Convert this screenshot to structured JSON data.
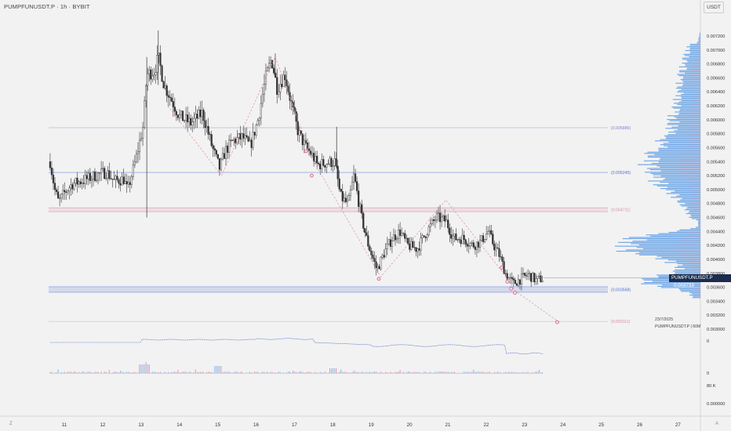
{
  "header": {
    "title": "PUMPFUNUSDT.P · 1h · BYBIT"
  },
  "unit_button": "USDT",
  "corners": {
    "bottom_left": "Z",
    "bottom_right": "A"
  },
  "info_box": {
    "date": "23/7/2025",
    "ticker": "PUMPFUNUSDT.P | 60M"
  },
  "price_tag": {
    "label": "PUMPFUNUSDT.P",
    "value": "0.003733"
  },
  "colors": {
    "background": "#f2f2f2",
    "candle": "#333333",
    "level_blue": "#4f6fd8",
    "level_pink": "#d88aa8",
    "profile_blue": "#4a90e2",
    "price_tag": "#1c2c4c"
  },
  "chart_data": {
    "type": "candlestick",
    "symbol": "PUMPFUNUSDT.P",
    "timeframe": "1h",
    "exchange": "BYBIT",
    "x_ticks": [
      "11",
      "12",
      "13",
      "14",
      "15",
      "16",
      "17",
      "18",
      "19",
      "20",
      "21",
      "22",
      "23",
      "24",
      "25",
      "26",
      "27"
    ],
    "x_range_days": [
      10.63,
      28.1
    ],
    "y_range": [
      0.00292,
      0.00752
    ],
    "y_ticks": [
      0.0072,
      0.007,
      0.0068,
      0.0066,
      0.0064,
      0.0062,
      0.006,
      0.0058,
      0.0056,
      0.0054,
      0.0052,
      0.005,
      0.0048,
      0.0046,
      0.0044,
      0.0042,
      0.004,
      0.0038,
      0.0036,
      0.0034,
      0.0032,
      0.003
    ],
    "y_tick_labels": [
      "0.007200",
      "0.007000",
      "0.006800",
      "0.006600",
      "0.006400",
      "0.006200",
      "0.006000",
      "0.005800",
      "0.005600",
      "0.005400",
      "0.005200",
      "0.005000",
      "0.004800",
      "0.004600",
      "0.004400",
      "0.004200",
      "0.004000",
      "0.003800",
      "0.003600",
      "0.003400",
      "0.003200",
      "0.003000"
    ],
    "price_path": [
      [
        10.63,
        0.0054
      ],
      [
        10.75,
        0.005
      ],
      [
        10.85,
        0.00482
      ],
      [
        11.0,
        0.00495
      ],
      [
        11.2,
        0.00508
      ],
      [
        11.5,
        0.00513
      ],
      [
        11.8,
        0.0052
      ],
      [
        12.1,
        0.00525
      ],
      [
        12.3,
        0.00512
      ],
      [
        12.55,
        0.00515
      ],
      [
        12.65,
        0.00498
      ],
      [
        12.85,
        0.0054
      ],
      [
        12.97,
        0.0057
      ],
      [
        13.05,
        0.0059
      ],
      [
        13.15,
        0.00665
      ],
      [
        13.35,
        0.0067
      ],
      [
        13.45,
        0.0069
      ],
      [
        13.6,
        0.0065
      ],
      [
        13.8,
        0.00628
      ],
      [
        14.0,
        0.00605
      ],
      [
        14.3,
        0.00595
      ],
      [
        14.6,
        0.0061
      ],
      [
        14.85,
        0.00562
      ],
      [
        15.05,
        0.0053
      ],
      [
        15.2,
        0.00556
      ],
      [
        15.4,
        0.0057
      ],
      [
        15.65,
        0.00575
      ],
      [
        15.85,
        0.00562
      ],
      [
        16.05,
        0.006
      ],
      [
        16.25,
        0.0066
      ],
      [
        16.4,
        0.00688
      ],
      [
        16.55,
        0.00645
      ],
      [
        16.75,
        0.00665
      ],
      [
        16.95,
        0.00615
      ],
      [
        17.1,
        0.00582
      ],
      [
        17.3,
        0.0056
      ],
      [
        17.45,
        0.0055
      ],
      [
        17.6,
        0.00535
      ],
      [
        17.8,
        0.00538
      ],
      [
        18.05,
        0.0054
      ],
      [
        18.2,
        0.0049
      ],
      [
        18.4,
        0.00478
      ],
      [
        18.55,
        0.0052
      ],
      [
        18.75,
        0.0046
      ],
      [
        18.9,
        0.00425
      ],
      [
        19.15,
        0.00385
      ],
      [
        19.35,
        0.0041
      ],
      [
        19.55,
        0.0043
      ],
      [
        19.75,
        0.0044
      ],
      [
        19.95,
        0.0042
      ],
      [
        20.2,
        0.00415
      ],
      [
        20.45,
        0.0044
      ],
      [
        20.7,
        0.0046
      ],
      [
        20.95,
        0.00455
      ],
      [
        21.15,
        0.0043
      ],
      [
        21.4,
        0.0043
      ],
      [
        21.65,
        0.0042
      ],
      [
        21.85,
        0.00425
      ],
      [
        22.05,
        0.0044
      ],
      [
        22.2,
        0.0042
      ],
      [
        22.35,
        0.00405
      ],
      [
        22.5,
        0.0038
      ],
      [
        22.7,
        0.00365
      ],
      [
        22.9,
        0.00372
      ],
      [
        23.1,
        0.00378
      ],
      [
        23.3,
        0.0037
      ],
      [
        23.5,
        0.00373
      ]
    ],
    "horizontal_levels": [
      {
        "price": 0.005886,
        "label": "(0.005886)",
        "color": "#8a7fc8",
        "style": "line"
      },
      {
        "price": 0.005245,
        "label": "(0.005245)",
        "color": "#4f6fd8",
        "style": "line"
      },
      {
        "price": 0.004711,
        "label": "(0.004711)",
        "color": "#d88aa8",
        "style": "band"
      },
      {
        "price": 0.003568,
        "label": "(0.003568)",
        "color": "#4f6fd8",
        "style": "band"
      },
      {
        "price": 0.003111,
        "label": "(0.003111)",
        "color": "#d88aa8",
        "style": "line"
      }
    ],
    "zigzag": [
      [
        13.7,
        0.0062
      ],
      [
        15.1,
        0.0052
      ],
      [
        16.5,
        0.0069
      ],
      [
        17.45,
        0.00545
      ],
      [
        19.25,
        0.00375
      ],
      [
        20.95,
        0.00485
      ],
      [
        22.45,
        0.0038
      ],
      [
        22.75,
        0.00355
      ],
      [
        23.9,
        0.0031
      ]
    ],
    "markers": [
      [
        17.3,
        0.00555
      ],
      [
        17.45,
        0.0052
      ],
      [
        19.2,
        0.00372
      ],
      [
        22.4,
        0.00388
      ],
      [
        22.55,
        0.00368
      ],
      [
        22.65,
        0.00358
      ],
      [
        22.75,
        0.00352
      ],
      [
        23.85,
        0.0031
      ]
    ],
    "current_price": 0.003733,
    "lower_panel_labels": [
      "0",
      "0",
      "80 K",
      "0.000000"
    ]
  }
}
